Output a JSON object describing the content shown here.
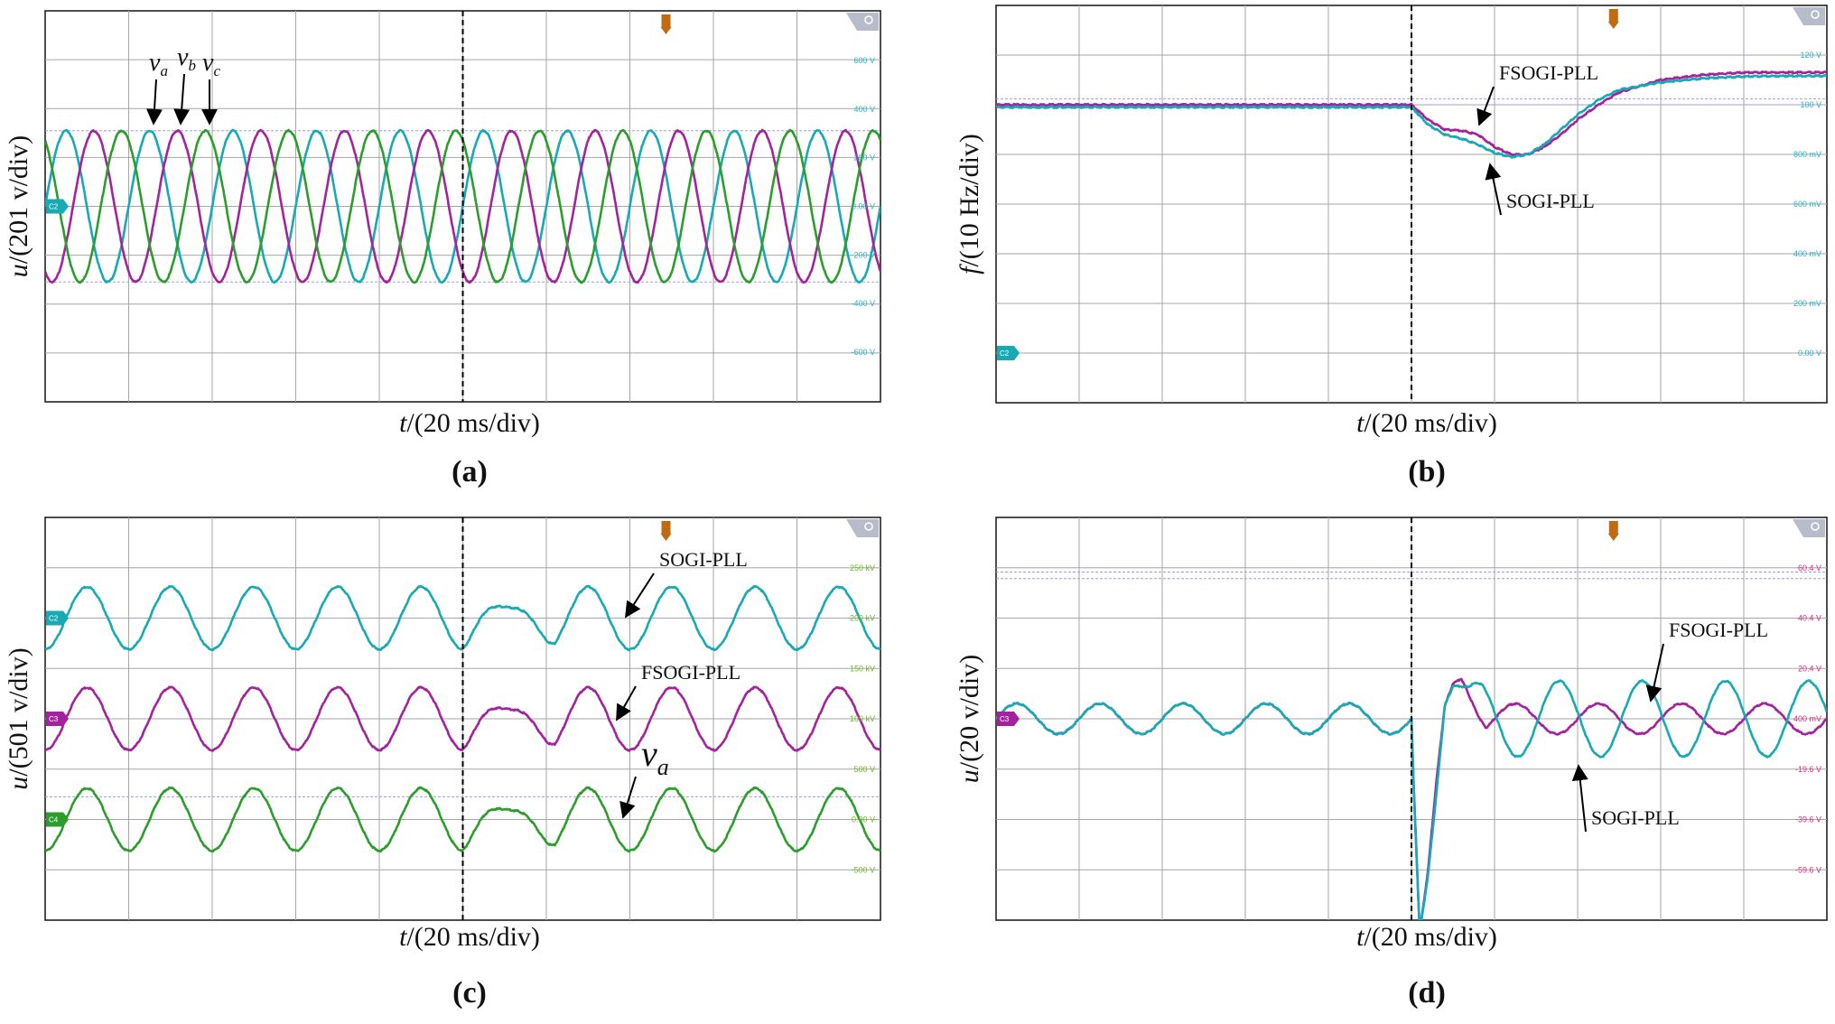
{
  "figure_colors": {
    "grid": "#a6a6a6",
    "frame": "#222222",
    "cyan": "#17a9b4",
    "magenta": "#a3239d",
    "green": "#2c9d2c",
    "c2_tick": "#22b5c8",
    "c3_tick": "#d42e7d",
    "c4_tick": "#6cb81e",
    "trigger_marker": "#c26a10",
    "ref_line": "#9d9de8"
  },
  "icons": [
    "trigger-marker-icon",
    "zoom-badge-icon",
    "channel-marker-icon",
    "annotation-arrow-icon"
  ],
  "chart_data": [
    {
      "id": "a",
      "type": "line",
      "caption": "(a)",
      "xlabel_var": "t",
      "xlabel_unit": "/(20 ms/div)",
      "ylabel_var": "u",
      "ylabel_unit": "/(201 v/div)",
      "x_divisions": 10,
      "y_divisions": 8,
      "x_unit": "ms",
      "x_range": [
        0,
        200
      ],
      "y_range": [
        -804,
        804
      ],
      "event_time": 100,
      "channel_marker": "C2",
      "right_ticks": [
        {
          "label": "600 V",
          "value": 600
        },
        {
          "label": "400 V",
          "value": 400
        },
        {
          "label": "200 V",
          "value": 200
        },
        {
          "label": "0.00 V",
          "value": 0
        },
        {
          "label": "-200 V",
          "value": -200
        },
        {
          "label": "-400 V",
          "value": -400
        },
        {
          "label": "-600 V",
          "value": -600
        }
      ],
      "ref_lines": [
        311,
        -311
      ],
      "series": [
        {
          "name": "v_a",
          "label_main": "v",
          "label_sub": "a",
          "color": "cyan",
          "amplitude": 311,
          "frequency_hz": 50,
          "phase_deg": 0
        },
        {
          "name": "v_b",
          "label_main": "v",
          "label_sub": "b",
          "color": "magenta",
          "amplitude": 311,
          "frequency_hz": 50,
          "phase_deg": -120
        },
        {
          "name": "v_c",
          "label_main": "v",
          "label_sub": "c",
          "color": "green",
          "amplitude": 311,
          "frequency_hz": 50,
          "phase_deg": 120
        }
      ]
    },
    {
      "id": "b",
      "type": "line",
      "caption": "(b)",
      "xlabel_var": "t",
      "xlabel_unit": "/(20 ms/div)",
      "ylabel_var": "f",
      "ylabel_unit": "/(10 Hz/div)",
      "x_divisions": 10,
      "y_divisions": 8,
      "x_unit": "ms",
      "x_range": [
        0,
        200
      ],
      "y_range": [
        0,
        80
      ],
      "event_time": 100,
      "channel_marker": "C2",
      "right_ticks": [
        {
          "label": "120 V",
          "value": 70
        },
        {
          "label": "100 V",
          "value": 60
        },
        {
          "label": "800 mV",
          "value": 50
        },
        {
          "label": "600 mV",
          "value": 40
        },
        {
          "label": "400 mV",
          "value": 30
        },
        {
          "label": "200 mV",
          "value": 20
        },
        {
          "label": "0.00 V",
          "value": 10
        }
      ],
      "ref_lines": [
        60,
        61.2
      ],
      "series": [
        {
          "name": "FSOGI-PLL",
          "color": "magenta",
          "x": [
            0,
            100,
            104,
            108,
            112,
            116,
            120,
            124,
            128,
            132,
            136,
            140,
            145,
            150,
            160,
            170,
            180,
            190,
            200
          ],
          "y": [
            60,
            60,
            57,
            55,
            54.8,
            54,
            51.5,
            50,
            50,
            51.5,
            54,
            57,
            60,
            62.5,
            65,
            66,
            66.5,
            66.5,
            66.5
          ]
        },
        {
          "name": "SOGI-PLL",
          "color": "cyan",
          "x": [
            0,
            100,
            104,
            108,
            112,
            116,
            120,
            124,
            128,
            132,
            136,
            140,
            145,
            150,
            160,
            170,
            180,
            190,
            200
          ],
          "y": [
            59.5,
            59.5,
            56,
            54,
            53.2,
            52,
            50.3,
            49.5,
            50,
            52,
            55,
            58,
            61,
            63,
            64.5,
            65.3,
            65.7,
            65.8,
            65.8
          ]
        }
      ],
      "annotations": [
        {
          "text": "FSOGI-PLL",
          "target": "FSOGI-PLL"
        },
        {
          "text": "SOGI-PLL",
          "target": "SOGI-PLL"
        }
      ]
    },
    {
      "id": "c",
      "type": "line",
      "caption": "(c)",
      "xlabel_var": "t",
      "xlabel_unit": "/(20 ms/div)",
      "ylabel_var": "u",
      "ylabel_unit": "/(501 v/div)",
      "x_divisions": 10,
      "y_divisions": 8,
      "x_unit": "ms",
      "x_range": [
        0,
        200
      ],
      "y_range": [
        -2004,
        2004
      ],
      "event_time": 100,
      "right_ticks": [
        {
          "label": "250 kV",
          "value": 1503
        },
        {
          "label": "200 kV",
          "value": 1002
        },
        {
          "label": "150 kV",
          "value": 501
        },
        {
          "label": "100 kV",
          "value": 0
        },
        {
          "label": "500 V",
          "value": -501
        },
        {
          "label": "0.00 V",
          "value": -1002
        },
        {
          "label": "-500 V",
          "value": -1503
        }
      ],
      "channel_markers": [
        {
          "label": "C2",
          "value": 1002,
          "color": "cyan"
        },
        {
          "label": "C3",
          "value": 0,
          "color": "magenta"
        },
        {
          "label": "C4",
          "value": -1002,
          "color": "green"
        }
      ],
      "ref_lines": [
        1002,
        -776
      ],
      "series": [
        {
          "name": "SOGI-PLL",
          "color": "cyan",
          "offset": 1002,
          "amplitude": 311,
          "frequency_hz": 50,
          "phase_deg": -90,
          "dip_amplitude": 180
        },
        {
          "name": "FSOGI-PLL",
          "color": "magenta",
          "offset": 0,
          "amplitude": 311,
          "frequency_hz": 50,
          "phase_deg": -90,
          "dip_amplitude": 150
        },
        {
          "name": "v_a",
          "label_main": "v",
          "label_sub": "a",
          "color": "green",
          "offset": -1002,
          "amplitude": 311,
          "frequency_hz": 50,
          "phase_deg": -90,
          "dip_amplitude": 150
        }
      ],
      "annotations": [
        {
          "text": "SOGI-PLL",
          "target": "SOGI-PLL"
        },
        {
          "text": "FSOGI-PLL",
          "target": "FSOGI-PLL"
        },
        {
          "text_main": "v",
          "text_sub": "a",
          "target": "v_a"
        }
      ]
    },
    {
      "id": "d",
      "type": "line",
      "caption": "(d)",
      "xlabel_var": "t",
      "xlabel_unit": "/(20 ms/div)",
      "ylabel_var": "u",
      "ylabel_unit": "/(20 v/div)",
      "x_divisions": 10,
      "y_divisions": 8,
      "x_unit": "ms",
      "x_range": [
        0,
        200
      ],
      "y_range": [
        -80,
        80
      ],
      "event_time": 100,
      "channel_marker": "C3",
      "right_ticks": [
        {
          "label": "60.4 V",
          "value": 60
        },
        {
          "label": "40.4 V",
          "value": 40
        },
        {
          "label": "20.4 V",
          "value": 20
        },
        {
          "label": "400 mV",
          "value": 0
        },
        {
          "label": "-19.6 V",
          "value": -20
        },
        {
          "label": "-39.6 V",
          "value": -40
        },
        {
          "label": "-59.6 V",
          "value": -60
        }
      ],
      "ref_lines": [
        58.3,
        55.7
      ],
      "series": [
        {
          "name": "FSOGI-PLL",
          "color": "magenta",
          "x": [
            0,
            100,
            100.5,
            102,
            104,
            106,
            108,
            110,
            112,
            114,
            116
          ],
          "y": [
            0,
            0,
            -25,
            -85,
            -60,
            -25,
            5,
            14,
            16,
            14,
            10
          ],
          "steady_after": 112,
          "steady_amplitude": 6,
          "steady_frequency_hz": 50
        },
        {
          "name": "SOGI-PLL",
          "color": "cyan",
          "x": [
            0,
            100,
            100.5,
            102,
            104,
            106,
            108,
            110,
            112,
            114,
            116
          ],
          "y": [
            0,
            0,
            -25,
            -85,
            -62,
            -30,
            5,
            13,
            13,
            8,
            2
          ],
          "steady_after": 112,
          "steady_amplitude": 15,
          "steady_frequency_hz": 50,
          "steady_phase_deg": 170
        }
      ],
      "annotations": [
        {
          "text": "FSOGI-PLL",
          "target": "FSOGI-PLL"
        },
        {
          "text": "SOGI-PLL",
          "target": "SOGI-PLL"
        }
      ]
    }
  ]
}
